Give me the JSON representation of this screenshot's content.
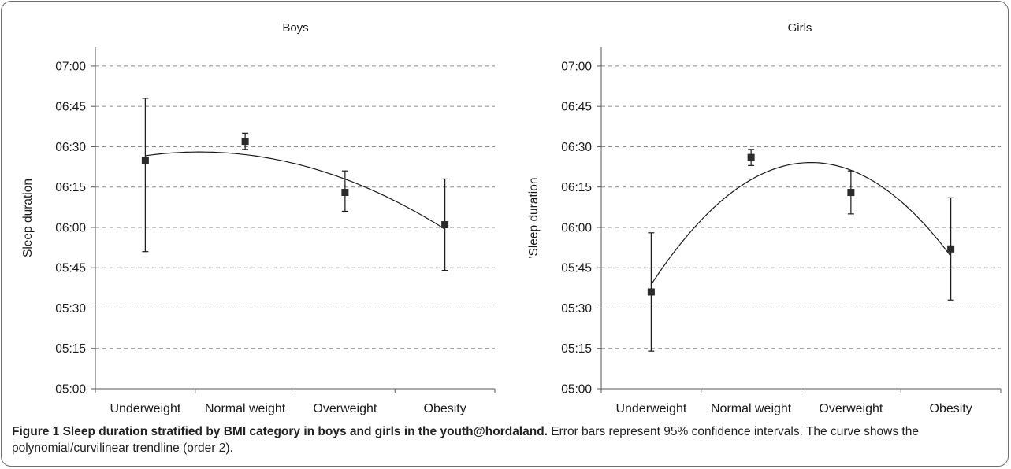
{
  "figure": {
    "caption_title": "Figure 1 Sleep duration stratified by BMI category in boys and girls in the youth@hordaland.",
    "caption_text": " Error bars represent 95% confidence intervals. The curve shows the polynomial/curvilinear trendline (order 2)."
  },
  "chart_data": [
    {
      "type": "scatter",
      "title": "Boys",
      "xlabel": "",
      "ylabel": "Sleep duration",
      "categories": [
        "Underweight",
        "Normal weight",
        "Overweight",
        "Obesity"
      ],
      "y_unit": "minutes after midnight",
      "ylim": [
        300,
        427
      ],
      "yticks": [
        300,
        315,
        330,
        345,
        360,
        375,
        390,
        405,
        420
      ],
      "ytick_labels": [
        "05:00",
        "05:15",
        "05:30",
        "05:45",
        "06:00",
        "06:15",
        "06:30",
        "06:45",
        "07:00"
      ],
      "grid": true,
      "series": [
        {
          "values": [
            385,
            392,
            373,
            361
          ],
          "error_low": [
            351,
            389,
            366,
            344
          ],
          "error_high": [
            408,
            395,
            381,
            378
          ],
          "trendline": "polynomial order 2"
        }
      ]
    },
    {
      "type": "scatter",
      "title": "Girls",
      "xlabel": "",
      "ylabel": "'Sleep duration",
      "categories": [
        "Underweight",
        "Normal weight",
        "Overweight",
        "Obesity"
      ],
      "y_unit": "minutes after midnight",
      "ylim": [
        300,
        427
      ],
      "yticks": [
        300,
        315,
        330,
        345,
        360,
        375,
        390,
        405,
        420
      ],
      "ytick_labels": [
        "05:00",
        "05:15",
        "05:30",
        "05:45",
        "06:00",
        "06:15",
        "06:30",
        "06:45",
        "07:00"
      ],
      "grid": true,
      "series": [
        {
          "values": [
            336,
            386,
            373,
            352
          ],
          "error_low": [
            314,
            383,
            365,
            333
          ],
          "error_high": [
            358,
            389,
            381,
            371
          ],
          "trendline": "polynomial order 2"
        }
      ]
    }
  ]
}
